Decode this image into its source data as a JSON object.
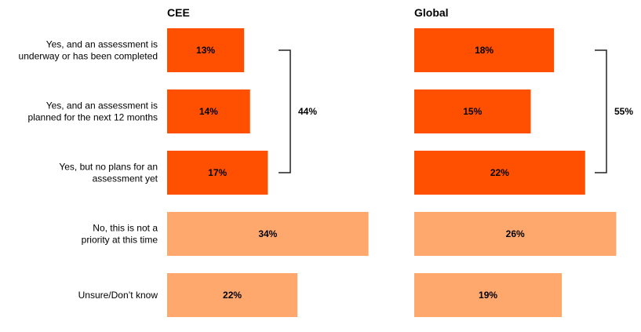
{
  "chart_data": {
    "type": "bar",
    "orientation": "horizontal",
    "categories": [
      [
        "Yes, and an assessment is",
        "underway or has been completed"
      ],
      [
        "Yes, and an assessment is",
        "planned for the next 12 months"
      ],
      [
        "Yes, but no plans for an",
        "assessment yet"
      ],
      [
        "No, this is not a",
        "priority at this time"
      ],
      [
        "Unsure/Don’t know"
      ]
    ],
    "series": [
      {
        "name": "CEE",
        "values": [
          13,
          14,
          17,
          34,
          22
        ],
        "value_labels": [
          "13%",
          "14%",
          "17%",
          "34%",
          "22%"
        ]
      },
      {
        "name": "Global",
        "values": [
          18,
          15,
          22,
          26,
          19
        ],
        "value_labels": [
          "18%",
          "15%",
          "22%",
          "26%",
          "19%"
        ]
      }
    ],
    "brackets": [
      {
        "series": "CEE",
        "from": 0,
        "to": 2,
        "label": "44%"
      },
      {
        "series": "Global",
        "from": 0,
        "to": 2,
        "label": "55%"
      }
    ],
    "xlim": [
      0,
      35
    ],
    "grid": false,
    "colors": {
      "highlight": "#FE5000",
      "muted": "#FFA86E",
      "bracket": "#222222"
    },
    "highlight_categories": [
      0,
      1,
      2
    ]
  }
}
